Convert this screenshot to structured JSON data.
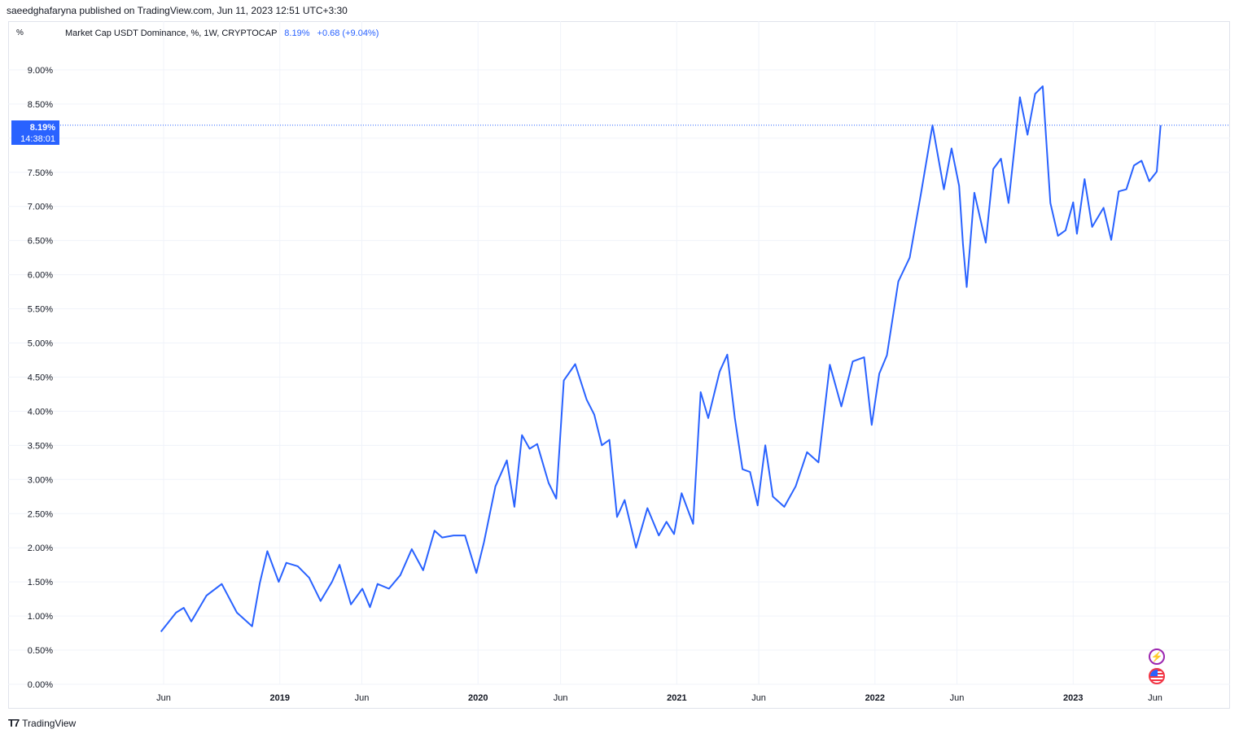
{
  "header": {
    "published": "saeedghafaryna published on TradingView.com, Jun 11, 2023 12:51 UTC+3:30"
  },
  "legend": {
    "title": "Market Cap USDT Dominance, %, 1W, CRYPTOCAP",
    "last_value": "8.19%",
    "change": "+0.68 (+9.04%)"
  },
  "price_scale": {
    "unit": "%",
    "ticks": [
      "9.00%",
      "8.50%",
      "8.00%",
      "7.50%",
      "7.00%",
      "6.50%",
      "6.00%",
      "5.50%",
      "5.00%",
      "4.50%",
      "4.00%",
      "3.50%",
      "3.00%",
      "2.50%",
      "2.00%",
      "1.50%",
      "1.00%",
      "0.50%",
      "0.00%"
    ]
  },
  "last_badge": {
    "value": "8.19%",
    "countdown": "14:38:01"
  },
  "time_scale": {
    "ticks": [
      {
        "label": "Jun",
        "date": "2018-06-01",
        "bold": false
      },
      {
        "label": "2019",
        "date": "2019-01-01",
        "bold": true
      },
      {
        "label": "Jun",
        "date": "2019-06-01",
        "bold": false
      },
      {
        "label": "2020",
        "date": "2020-01-01",
        "bold": true
      },
      {
        "label": "Jun",
        "date": "2020-06-01",
        "bold": false
      },
      {
        "label": "2021",
        "date": "2021-01-01",
        "bold": true
      },
      {
        "label": "Jun",
        "date": "2021-06-01",
        "bold": false
      },
      {
        "label": "2022",
        "date": "2022-01-01",
        "bold": true
      },
      {
        "label": "Jun",
        "date": "2022-06-01",
        "bold": false
      },
      {
        "label": "2023",
        "date": "2023-01-01",
        "bold": true
      },
      {
        "label": "Jun",
        "date": "2023-06-01",
        "bold": false
      }
    ]
  },
  "footer": {
    "brand": "TradingView"
  },
  "icons": {
    "event_flash": "flash-icon",
    "event_flag": "us-flag-icon"
  },
  "colors": {
    "line": "#2962ff",
    "grid": "#f0f3fa",
    "text": "#131722"
  },
  "chart_data": {
    "type": "line",
    "title": "Market Cap USDT Dominance, %, 1W, CRYPTOCAP",
    "xlabel": "",
    "ylabel": "%",
    "ylim": [
      0,
      9.6
    ],
    "xlim": [
      "2018-02-01",
      "2023-07-30"
    ],
    "grid": true,
    "legend": "top-left",
    "last_value": 8.19,
    "series": [
      {
        "x": [
          "2018-05-27",
          "2018-06-24",
          "2018-07-08",
          "2018-07-22",
          "2018-08-19",
          "2018-09-16",
          "2018-10-14",
          "2018-11-11",
          "2018-11-25",
          "2018-12-09",
          "2018-12-30",
          "2019-01-13",
          "2019-02-03",
          "2019-02-24",
          "2019-03-17",
          "2019-04-07",
          "2019-04-21",
          "2019-05-12",
          "2019-06-02",
          "2019-06-16",
          "2019-06-30",
          "2019-07-21",
          "2019-08-11",
          "2019-09-01",
          "2019-09-22",
          "2019-10-13",
          "2019-10-27",
          "2019-11-17",
          "2019-12-08",
          "2019-12-29",
          "2020-01-12",
          "2020-02-02",
          "2020-02-23",
          "2020-03-08",
          "2020-03-22",
          "2020-04-05",
          "2020-04-19",
          "2020-05-10",
          "2020-05-24",
          "2020-06-07",
          "2020-06-28",
          "2020-07-19",
          "2020-08-02",
          "2020-08-16",
          "2020-08-30",
          "2020-09-13",
          "2020-09-27",
          "2020-10-18",
          "2020-11-08",
          "2020-11-29",
          "2020-12-13",
          "2020-12-27",
          "2021-01-10",
          "2021-01-31",
          "2021-02-14",
          "2021-02-28",
          "2021-03-21",
          "2021-04-04",
          "2021-04-18",
          "2021-05-02",
          "2021-05-16",
          "2021-05-30",
          "2021-06-13",
          "2021-06-27",
          "2021-07-18",
          "2021-08-08",
          "2021-08-29",
          "2021-09-19",
          "2021-10-10",
          "2021-10-31",
          "2021-11-21",
          "2021-12-12",
          "2021-12-26",
          "2022-01-09",
          "2022-01-23",
          "2022-02-13",
          "2022-03-06",
          "2022-03-27",
          "2022-04-17",
          "2022-05-08",
          "2022-05-22",
          "2022-06-05",
          "2022-06-12",
          "2022-06-19",
          "2022-07-03",
          "2022-07-24",
          "2022-08-07",
          "2022-08-21",
          "2022-09-04",
          "2022-09-25",
          "2022-10-09",
          "2022-10-23",
          "2022-11-06",
          "2022-11-20",
          "2022-12-04",
          "2022-12-18",
          "2023-01-01",
          "2023-01-08",
          "2023-01-22",
          "2023-02-05",
          "2023-02-26",
          "2023-03-12",
          "2023-03-26",
          "2023-04-09",
          "2023-04-23",
          "2023-05-07",
          "2023-05-21",
          "2023-06-04",
          "2023-06-11"
        ],
        "y": [
          0.77,
          1.05,
          1.12,
          0.92,
          1.3,
          1.47,
          1.05,
          0.85,
          1.48,
          1.95,
          1.5,
          1.78,
          1.73,
          1.56,
          1.22,
          1.5,
          1.75,
          1.17,
          1.4,
          1.13,
          1.47,
          1.4,
          1.6,
          1.98,
          1.67,
          2.25,
          2.15,
          2.18,
          2.18,
          1.63,
          2.08,
          2.9,
          3.28,
          2.6,
          3.65,
          3.45,
          3.52,
          2.95,
          2.72,
          4.45,
          4.69,
          4.17,
          3.95,
          3.5,
          3.58,
          2.45,
          2.7,
          2.0,
          2.58,
          2.18,
          2.38,
          2.2,
          2.8,
          2.35,
          4.28,
          3.9,
          4.58,
          4.83,
          3.9,
          3.15,
          3.11,
          2.62,
          3.5,
          2.75,
          2.6,
          2.9,
          3.4,
          3.25,
          4.68,
          4.07,
          4.73,
          4.79,
          3.8,
          4.55,
          4.82,
          5.9,
          6.25,
          7.2,
          8.19,
          7.25,
          7.85,
          7.3,
          6.45,
          5.82,
          7.2,
          6.47,
          7.55,
          7.7,
          7.05,
          8.6,
          8.05,
          8.65,
          8.76,
          7.05,
          6.57,
          6.65,
          7.06,
          6.6,
          7.4,
          6.7,
          6.98,
          6.51,
          7.22,
          7.25,
          7.6,
          7.67,
          7.37,
          7.51,
          8.19
        ]
      }
    ]
  }
}
